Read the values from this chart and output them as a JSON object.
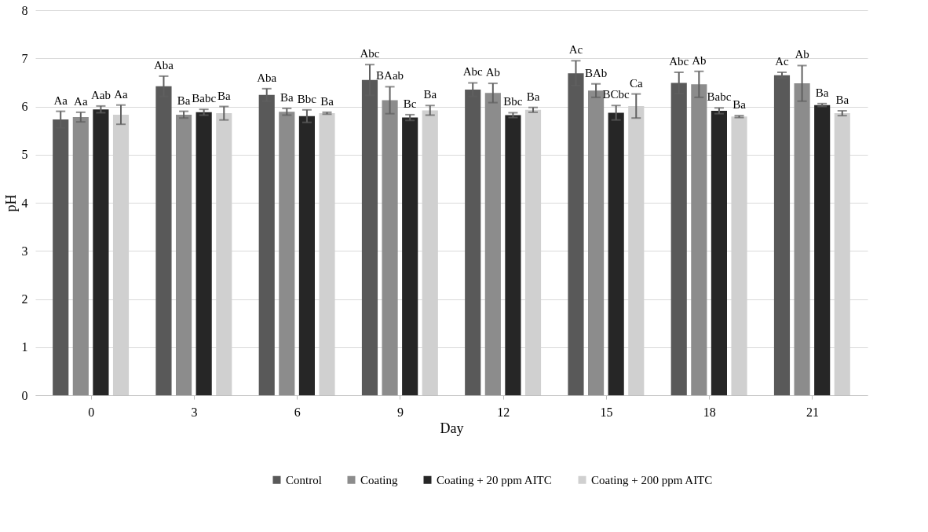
{
  "chart_data": {
    "type": "bar",
    "xlabel": "Day",
    "ylabel": "pH",
    "categories": [
      "0",
      "3",
      "6",
      "9",
      "12",
      "15",
      "18",
      "21"
    ],
    "ylim": [
      0,
      8
    ],
    "yticks": [
      0,
      1,
      2,
      3,
      4,
      5,
      6,
      7,
      8
    ],
    "grid": "y",
    "legend": "bottom",
    "series": [
      {
        "name": "Control",
        "color": "#595959",
        "values": [
          5.73,
          6.42,
          6.24,
          6.55,
          6.35,
          6.69,
          6.49,
          6.65
        ],
        "errors": [
          0.17,
          0.21,
          0.13,
          0.32,
          0.14,
          0.26,
          0.22,
          0.06
        ],
        "value_labels": [
          "Aa",
          "Aba",
          "Aba",
          "Abc",
          "Abc",
          "Ac",
          "Abc",
          "Ac"
        ]
      },
      {
        "name": "Coating",
        "color": "#8c8c8c",
        "values": [
          5.78,
          5.83,
          5.89,
          6.13,
          6.28,
          6.33,
          6.46,
          6.48
        ],
        "errors": [
          0.1,
          0.07,
          0.07,
          0.28,
          0.2,
          0.14,
          0.27,
          0.37
        ],
        "value_labels": [
          "Aa",
          "Ba",
          "Ba",
          "BAab",
          "Ab",
          "BAb",
          "Ab",
          "Ab"
        ]
      },
      {
        "name": "Coating + 20 ppm AITC",
        "color": "#262626",
        "values": [
          5.94,
          5.88,
          5.8,
          5.77,
          5.82,
          5.87,
          5.91,
          6.03
        ],
        "errors": [
          0.07,
          0.06,
          0.13,
          0.06,
          0.05,
          0.15,
          0.06,
          0.03
        ],
        "value_labels": [
          "Aab",
          "Babc",
          "Bbc",
          "Bc",
          "Bbc",
          "BCbc",
          "Babc",
          "Ba"
        ]
      },
      {
        "name": "Coating + 200 ppm AITC",
        "color": "#d0d0d0",
        "values": [
          5.83,
          5.86,
          5.86,
          5.92,
          5.93,
          6.01,
          5.79,
          5.86
        ],
        "errors": [
          0.2,
          0.14,
          0.02,
          0.1,
          0.05,
          0.25,
          0.02,
          0.05
        ],
        "value_labels": [
          "Aa",
          "Ba",
          "Ba",
          "Ba",
          "Ba",
          "Ca",
          "Ba",
          "Ba"
        ]
      }
    ]
  }
}
